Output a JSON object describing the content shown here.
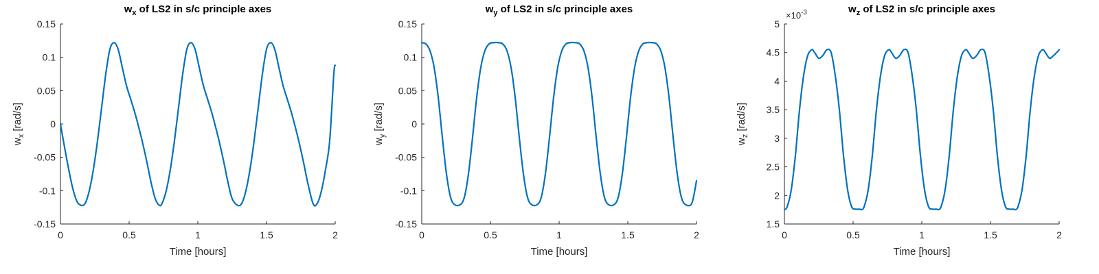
{
  "figure": {
    "series_color": "#0072BD",
    "axis_color": "#262626"
  },
  "chart_data": [
    {
      "type": "line",
      "title_main": "w",
      "title_sub": "x",
      "title_rest": " of LS2 in s/c principle axes",
      "xlabel": "Time [hours]",
      "ylabel_main": "w",
      "ylabel_sub": "x",
      "ylabel_rest": " [rad/s]",
      "xlim": [
        0,
        2
      ],
      "ylim": [
        -0.15,
        0.15
      ],
      "xticks": [
        0,
        0.5,
        1,
        1.5,
        2
      ],
      "xticklabels": [
        "0",
        "0.5",
        "1",
        "1.5",
        "2"
      ],
      "yticks": [
        -0.15,
        -0.1,
        -0.05,
        0,
        0.05,
        0.1,
        0.15
      ],
      "yticklabels": [
        "-0.15",
        "-0.1",
        "-0.05",
        "0",
        "0.05",
        "0.1",
        "0.15"
      ],
      "y_exponent": "",
      "grid": false,
      "series": [
        {
          "x": [
            0,
            0.03,
            0.06,
            0.09,
            0.12,
            0.15,
            0.18,
            0.21,
            0.24,
            0.27,
            0.3,
            0.33,
            0.36,
            0.39,
            0.42,
            0.45,
            0.48,
            0.51,
            0.54,
            0.57,
            0.6,
            0.63,
            0.66,
            0.69,
            0.72,
            0.74,
            0.77,
            0.8,
            0.83,
            0.86,
            0.89,
            0.92,
            0.95,
            0.98,
            1.01,
            1.04,
            1.07,
            1.1,
            1.13,
            1.16,
            1.19,
            1.22,
            1.25,
            1.29,
            1.32,
            1.35,
            1.38,
            1.41,
            1.44,
            1.47,
            1.5,
            1.53,
            1.56,
            1.59,
            1.62,
            1.65,
            1.68,
            1.71,
            1.74,
            1.77,
            1.8,
            1.84,
            1.87,
            1.9,
            1.93,
            1.96,
            1.99,
            2.0
          ],
          "y": [
            0,
            -0.035,
            -0.068,
            -0.097,
            -0.116,
            -0.122,
            -0.119,
            -0.1,
            -0.068,
            -0.025,
            0.025,
            0.075,
            0.112,
            0.122,
            0.112,
            0.085,
            0.058,
            0.038,
            0.018,
            -0.005,
            -0.03,
            -0.058,
            -0.088,
            -0.112,
            -0.122,
            -0.119,
            -0.1,
            -0.068,
            -0.025,
            0.025,
            0.075,
            0.112,
            0.122,
            0.112,
            0.085,
            0.058,
            0.038,
            0.018,
            -0.005,
            -0.03,
            -0.058,
            -0.088,
            -0.112,
            -0.122,
            -0.119,
            -0.1,
            -0.068,
            -0.025,
            0.025,
            0.075,
            0.112,
            0.122,
            0.112,
            0.085,
            0.058,
            0.038,
            0.018,
            -0.005,
            -0.03,
            -0.058,
            -0.088,
            -0.12,
            -0.119,
            -0.1,
            -0.068,
            -0.025,
            0.075,
            0.088
          ]
        }
      ]
    },
    {
      "type": "line",
      "title_main": "w",
      "title_sub": "y",
      "title_rest": " of LS2 in s/c principle axes",
      "xlabel": "Time [hours]",
      "ylabel_main": "w",
      "ylabel_sub": "y",
      "ylabel_rest": " [rad/s]",
      "xlim": [
        0,
        2
      ],
      "ylim": [
        -0.15,
        0.15
      ],
      "xticks": [
        0,
        0.5,
        1,
        1.5,
        2
      ],
      "xticklabels": [
        "0",
        "0.5",
        "1",
        "1.5",
        "2"
      ],
      "yticks": [
        -0.15,
        -0.1,
        -0.05,
        0,
        0.05,
        0.1,
        0.15
      ],
      "yticklabels": [
        "-0.15",
        "-0.1",
        "-0.05",
        "0",
        "0.05",
        "0.1",
        "0.15"
      ],
      "y_exponent": "",
      "grid": false,
      "series": [
        {
          "x": [
            0,
            0.03,
            0.06,
            0.09,
            0.12,
            0.15,
            0.18,
            0.21,
            0.24,
            0.28,
            0.31,
            0.34,
            0.37,
            0.4,
            0.43,
            0.46,
            0.49,
            0.52,
            0.56,
            0.59,
            0.62,
            0.65,
            0.68,
            0.71,
            0.74,
            0.77,
            0.8,
            0.84,
            0.87,
            0.9,
            0.93,
            0.96,
            0.99,
            1.02,
            1.05,
            1.08,
            1.12,
            1.15,
            1.18,
            1.21,
            1.24,
            1.27,
            1.3,
            1.33,
            1.36,
            1.4,
            1.43,
            1.46,
            1.49,
            1.52,
            1.55,
            1.58,
            1.61,
            1.64,
            1.68,
            1.71,
            1.74,
            1.77,
            1.8,
            1.83,
            1.86,
            1.89,
            1.92,
            1.96,
            1.98,
            2.0
          ],
          "y": [
            0.122,
            0.12,
            0.11,
            0.085,
            0.04,
            -0.02,
            -0.075,
            -0.11,
            -0.121,
            -0.121,
            -0.11,
            -0.075,
            -0.02,
            0.04,
            0.085,
            0.11,
            0.12,
            0.122,
            0.122,
            0.12,
            0.11,
            0.085,
            0.04,
            -0.02,
            -0.075,
            -0.11,
            -0.121,
            -0.121,
            -0.11,
            -0.075,
            -0.02,
            0.04,
            0.085,
            0.11,
            0.12,
            0.122,
            0.122,
            0.12,
            0.11,
            0.085,
            0.04,
            -0.02,
            -0.075,
            -0.11,
            -0.121,
            -0.121,
            -0.11,
            -0.075,
            -0.02,
            0.04,
            0.085,
            0.11,
            0.12,
            0.122,
            0.122,
            0.12,
            0.11,
            0.085,
            0.04,
            -0.02,
            -0.075,
            -0.11,
            -0.121,
            -0.121,
            -0.108,
            -0.085
          ]
        }
      ]
    },
    {
      "type": "line",
      "title_main": "w",
      "title_sub": "z",
      "title_rest": " of LS2 in s/c principle axes",
      "xlabel": "Time [hours]",
      "ylabel_main": "w",
      "ylabel_sub": "z",
      "ylabel_rest": " [rad/s]",
      "xlim": [
        0,
        2
      ],
      "ylim": [
        1.5,
        5
      ],
      "xticks": [
        0,
        0.5,
        1,
        1.5,
        2
      ],
      "xticklabels": [
        "0",
        "0.5",
        "1",
        "1.5",
        "2"
      ],
      "yticks": [
        1.5,
        2,
        2.5,
        3,
        3.5,
        4,
        4.5,
        5
      ],
      "yticklabels": [
        "1.5",
        "2",
        "2.5",
        "3",
        "3.5",
        "4",
        "4.5",
        "5"
      ],
      "y_exponent_base": "×10",
      "y_exponent": "-3",
      "grid": false,
      "series": [
        {
          "x": [
            0,
            0.02,
            0.05,
            0.08,
            0.11,
            0.14,
            0.17,
            0.2,
            0.22,
            0.25,
            0.28,
            0.31,
            0.34,
            0.37,
            0.4,
            0.43,
            0.46,
            0.49,
            0.52,
            0.55,
            0.56,
            0.58,
            0.61,
            0.64,
            0.67,
            0.7,
            0.73,
            0.76,
            0.78,
            0.81,
            0.84,
            0.87,
            0.9,
            0.93,
            0.96,
            0.99,
            1.02,
            1.05,
            1.08,
            1.11,
            1.12,
            1.14,
            1.17,
            1.2,
            1.23,
            1.26,
            1.29,
            1.32,
            1.34,
            1.37,
            1.4,
            1.43,
            1.46,
            1.49,
            1.52,
            1.55,
            1.58,
            1.61,
            1.64,
            1.67,
            1.68,
            1.7,
            1.73,
            1.76,
            1.79,
            1.82,
            1.85,
            1.88,
            1.9,
            1.93,
            1.96,
            1.99,
            2.0
          ],
          "y": [
            1.75,
            1.8,
            2.1,
            2.7,
            3.5,
            4.1,
            4.45,
            4.55,
            4.5,
            4.4,
            4.45,
            4.55,
            4.5,
            4.1,
            3.5,
            2.7,
            2.1,
            1.8,
            1.76,
            1.76,
            1.75,
            1.8,
            2.1,
            2.7,
            3.5,
            4.1,
            4.45,
            4.55,
            4.5,
            4.4,
            4.45,
            4.55,
            4.5,
            4.1,
            3.5,
            2.7,
            2.1,
            1.8,
            1.76,
            1.76,
            1.75,
            1.8,
            2.1,
            2.7,
            3.5,
            4.1,
            4.45,
            4.55,
            4.5,
            4.4,
            4.45,
            4.55,
            4.5,
            4.1,
            3.5,
            2.7,
            2.1,
            1.8,
            1.76,
            1.76,
            1.75,
            1.8,
            2.1,
            2.7,
            3.5,
            4.1,
            4.45,
            4.55,
            4.5,
            4.4,
            4.45,
            4.52,
            4.55
          ]
        }
      ]
    }
  ]
}
